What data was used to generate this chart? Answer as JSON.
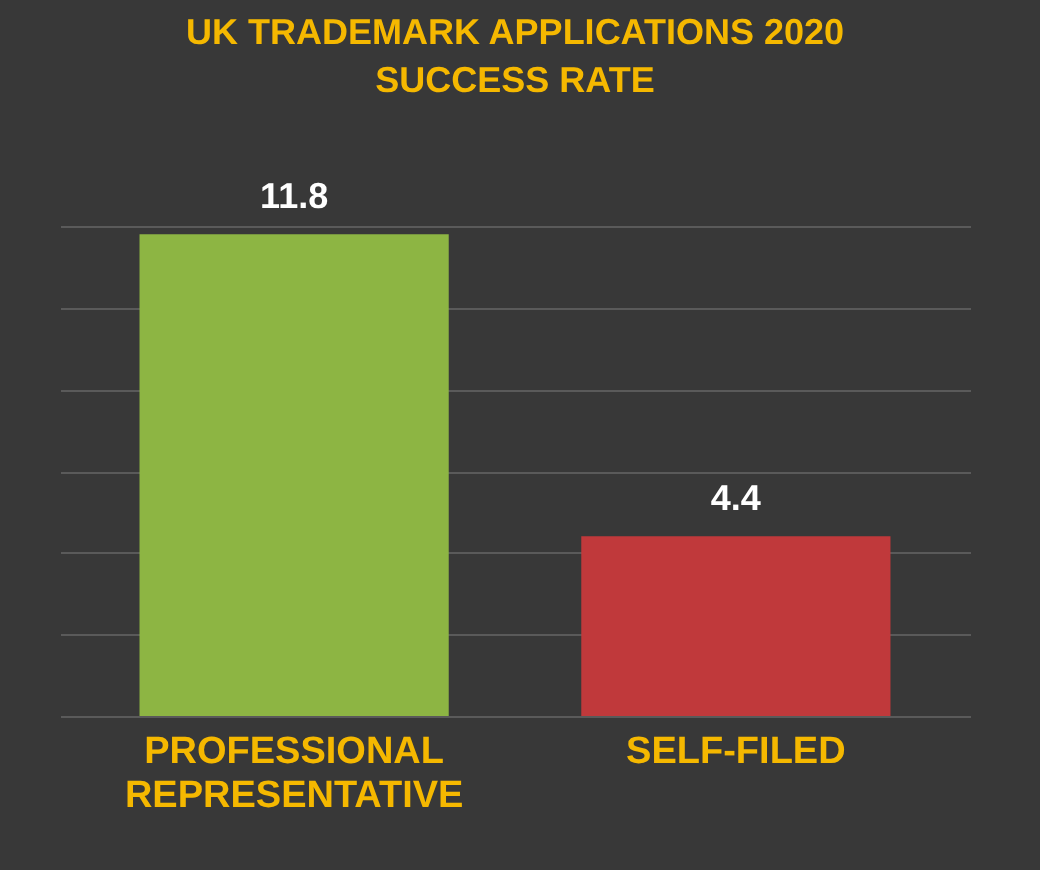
{
  "chart_data": {
    "type": "bar",
    "title": "UK TRADEMARK APPLICATIONS 2020\nSUCCESS RATE",
    "categories": [
      "PROFESSIONAL REPRESENTATIVE",
      "SELF-FILED"
    ],
    "values": [
      11.8,
      4.4
    ],
    "colors": [
      "#8db543",
      "#c0393b"
    ],
    "grid": true,
    "data_labels": true,
    "tick_labels": "x",
    "legend": false
  }
}
